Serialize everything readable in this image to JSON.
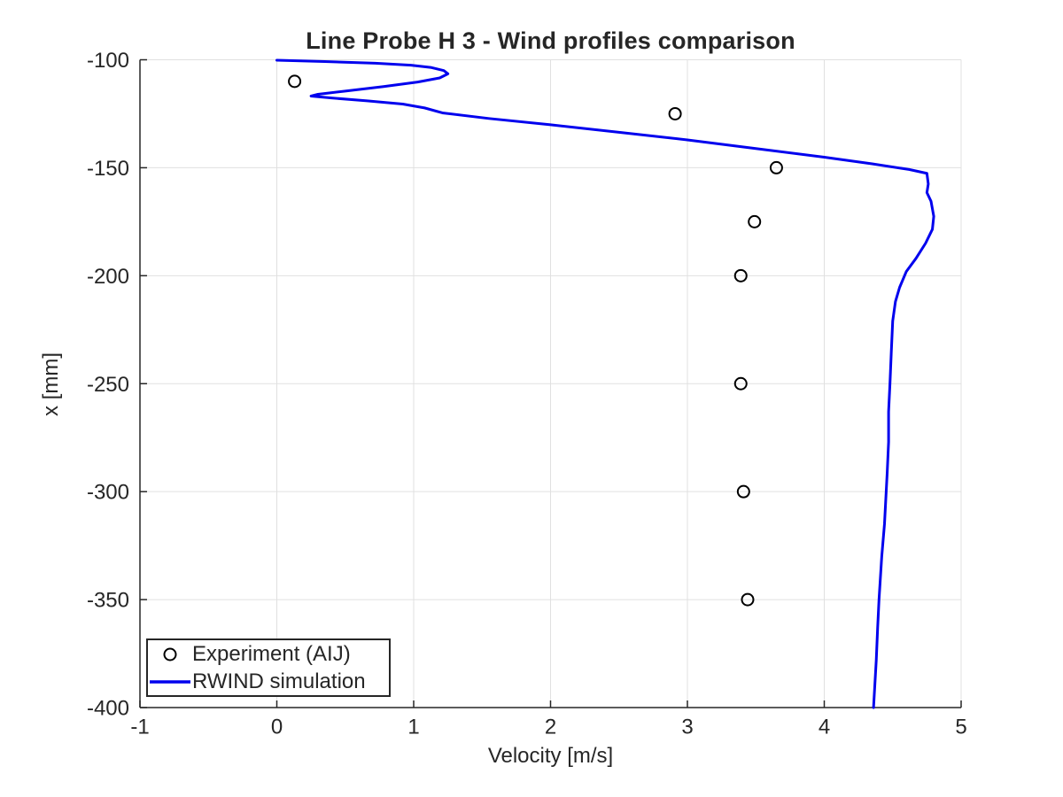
{
  "window": {
    "background": "#FFFFFF"
  },
  "chart_data": {
    "type": "line",
    "title": "Line Probe H 3 - Wind profiles comparison",
    "xlabel": "Velocity [m/s]",
    "ylabel": "x [mm]",
    "xlim": [
      -1,
      5
    ],
    "ylim": [
      -400,
      -100
    ],
    "xticks": [
      -1,
      0,
      1,
      2,
      3,
      4,
      5
    ],
    "yticks": [
      -400,
      -350,
      -300,
      -250,
      -200,
      -150,
      -100
    ],
    "grid": true,
    "grid_color": "#E0E0E0",
    "axis_color": "#262626",
    "legend": {
      "position": "bottom-left",
      "border_color": "#262626",
      "background": "#FFFFFF"
    },
    "series": [
      {
        "name": "Experiment (AIJ)",
        "type": "scatter",
        "marker": "circle",
        "color": "#000000",
        "points": [
          [
            0.13,
            -110
          ],
          [
            2.91,
            -125
          ],
          [
            3.65,
            -150
          ],
          [
            3.49,
            -175
          ],
          [
            3.39,
            -200
          ],
          [
            3.39,
            -250
          ],
          [
            3.41,
            -300
          ],
          [
            3.44,
            -350
          ]
        ]
      },
      {
        "name": "RWIND simulation",
        "type": "line",
        "color": "#0000EE",
        "line_width": 3,
        "points": [
          [
            0.0,
            -100.2
          ],
          [
            0.35,
            -100.8
          ],
          [
            0.72,
            -101.6
          ],
          [
            0.98,
            -102.5
          ],
          [
            1.13,
            -103.6
          ],
          [
            1.22,
            -105.0
          ],
          [
            1.25,
            -106.5
          ],
          [
            1.19,
            -108.4
          ],
          [
            1.03,
            -110.3
          ],
          [
            0.78,
            -112.4
          ],
          [
            0.5,
            -114.5
          ],
          [
            0.3,
            -116.0
          ],
          [
            0.25,
            -116.8
          ],
          [
            0.4,
            -117.7
          ],
          [
            0.66,
            -119.0
          ],
          [
            0.92,
            -120.5
          ],
          [
            1.08,
            -122.3
          ],
          [
            1.21,
            -124.6
          ],
          [
            1.55,
            -127.2
          ],
          [
            2.0,
            -130.1
          ],
          [
            2.5,
            -133.6
          ],
          [
            3.0,
            -137.1
          ],
          [
            3.5,
            -141.1
          ],
          [
            4.0,
            -145.1
          ],
          [
            4.35,
            -148.2
          ],
          [
            4.62,
            -150.8
          ],
          [
            4.75,
            -152.6
          ],
          [
            4.76,
            -157.5
          ],
          [
            4.75,
            -161.5
          ],
          [
            4.78,
            -165.5
          ],
          [
            4.8,
            -172.5
          ],
          [
            4.79,
            -178.5
          ],
          [
            4.74,
            -185.0
          ],
          [
            4.67,
            -192.0
          ],
          [
            4.6,
            -198.0
          ],
          [
            4.55,
            -205.5
          ],
          [
            4.52,
            -212.0
          ],
          [
            4.5,
            -221.0
          ],
          [
            4.49,
            -235.0
          ],
          [
            4.48,
            -250.0
          ],
          [
            4.47,
            -263.0
          ],
          [
            4.47,
            -277.0
          ],
          [
            4.46,
            -291.0
          ],
          [
            4.45,
            -303.0
          ],
          [
            4.44,
            -315.0
          ],
          [
            4.42,
            -330.0
          ],
          [
            4.4,
            -350.0
          ],
          [
            4.39,
            -363.0
          ],
          [
            4.38,
            -378.0
          ],
          [
            4.36,
            -400.0
          ]
        ]
      }
    ]
  }
}
